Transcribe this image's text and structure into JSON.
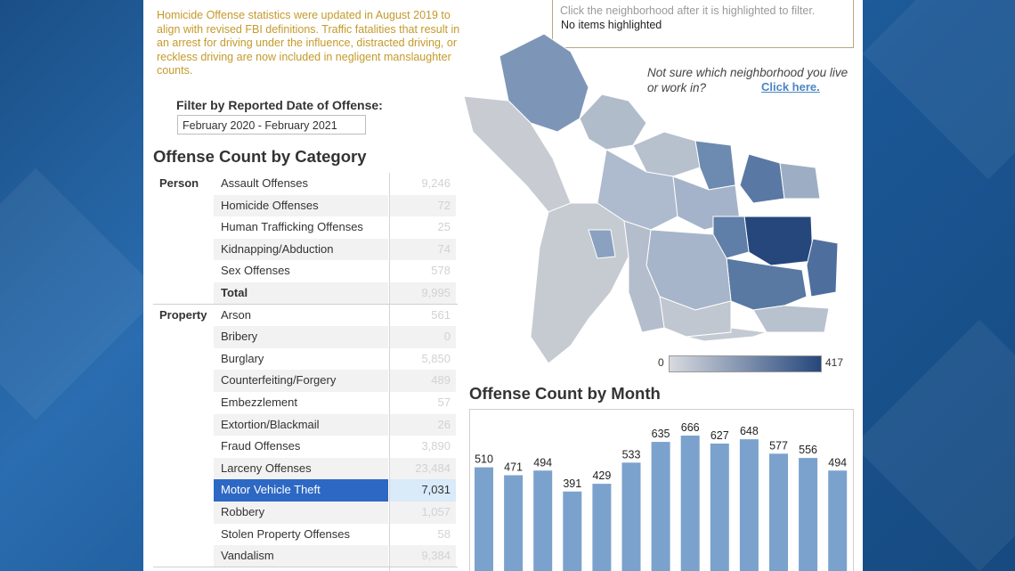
{
  "note": "Homicide Offense statistics were updated in August 2019 to align with revised FBI definitions. Traffic fatalities that result in an arrest for driving under the influence, distracted driving, or reckless driving are now included in negligent manslaughter counts.",
  "filter": {
    "label": "Filter by Reported Date of Offense:",
    "value": "February 2020 - February 2021"
  },
  "category_title": "Offense Count by Category",
  "groups": {
    "person": "Person",
    "property": "Property"
  },
  "rows": [
    {
      "label": "Assault Offenses",
      "value": "9,246"
    },
    {
      "label": "Homicide Offenses",
      "value": "72"
    },
    {
      "label": "Human Trafficking Offenses",
      "value": "25"
    },
    {
      "label": "Kidnapping/Abduction",
      "value": "74"
    },
    {
      "label": "Sex Offenses",
      "value": "578"
    },
    {
      "label": "Total",
      "value": "9,995"
    },
    {
      "label": "Arson",
      "value": "561"
    },
    {
      "label": "Bribery",
      "value": "0"
    },
    {
      "label": "Burglary",
      "value": "5,850"
    },
    {
      "label": "Counterfeiting/Forgery",
      "value": "489"
    },
    {
      "label": "Embezzlement",
      "value": "57"
    },
    {
      "label": "Extortion/Blackmail",
      "value": "26"
    },
    {
      "label": "Fraud Offenses",
      "value": "3,890"
    },
    {
      "label": "Larceny Offenses",
      "value": "23,484"
    },
    {
      "label": "Motor Vehicle Theft",
      "value": "7,031"
    },
    {
      "label": "Robbery",
      "value": "1,057"
    },
    {
      "label": "Stolen Property Offenses",
      "value": "58"
    },
    {
      "label": "Vandalism",
      "value": "9,384"
    }
  ],
  "highlight": {
    "hint": "Click the neighborhood after it is highlighted to filter.",
    "status": "No items highlighted"
  },
  "neighborhood": {
    "question": "Not sure which neighborhood you live or work in?",
    "link": "Click here."
  },
  "map_legend": {
    "min": "0",
    "max": "417",
    "color_low": "#d8dadf",
    "color_high": "#25477c"
  },
  "selected_color": "#2d68c4",
  "bar_color": "#7ba2cc",
  "chart_data": {
    "type": "bar",
    "title": "Offense Count by Month",
    "values": [
      510,
      471,
      494,
      391,
      429,
      533,
      635,
      666,
      627,
      648,
      577,
      556,
      494
    ]
  }
}
